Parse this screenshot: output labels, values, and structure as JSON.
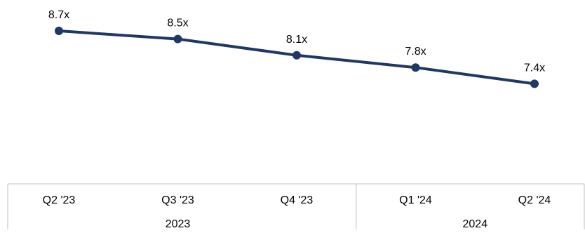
{
  "chart_data": {
    "type": "line",
    "title": "",
    "xlabel": "",
    "ylabel": "",
    "categories": [
      "Q2 '23",
      "Q3 '23",
      "Q4 '23",
      "Q1 '24",
      "Q2 '24"
    ],
    "groups": [
      {
        "label": "2023",
        "categories": [
          "Q2 '23",
          "Q3 '23",
          "Q4 '23"
        ]
      },
      {
        "label": "2024",
        "categories": [
          "Q1 '24",
          "Q2 '24"
        ]
      }
    ],
    "series": [
      {
        "values": [
          8.7,
          8.5,
          8.1,
          7.8,
          7.4
        ],
        "data_labels": [
          "8.7x",
          "8.5x",
          "8.1x",
          "7.8x",
          "7.4x"
        ],
        "color": "#1f3864"
      }
    ],
    "ylim": [
      5.5,
      9.0
    ],
    "grid": false,
    "legend": "none",
    "colors": {
      "line": "#1f3864",
      "axis_border": "#bfbfbf",
      "text": "#000000"
    }
  }
}
